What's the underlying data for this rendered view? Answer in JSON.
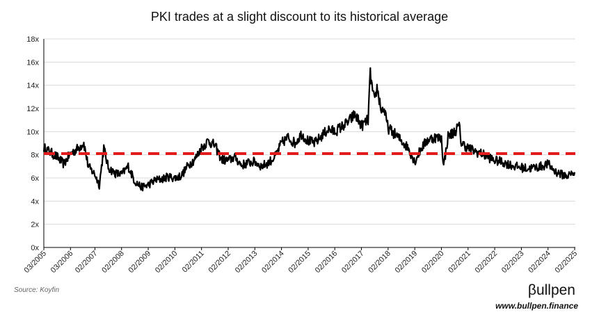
{
  "chart_data": {
    "type": "line",
    "title": "PKI trades at a slight discount to its historical average",
    "xlabel": "",
    "ylabel": "",
    "ylim": [
      0,
      18
    ],
    "y_ticks": [
      "0x",
      "2x",
      "4x",
      "6x",
      "8x",
      "10x",
      "12x",
      "14x",
      "16x",
      "18x"
    ],
    "x_ticks": [
      "03/2005",
      "03/2006",
      "02/2007",
      "02/2008",
      "02/2009",
      "02/2010",
      "02/2011",
      "02/2012",
      "02/2013",
      "02/2014",
      "02/2015",
      "02/2016",
      "02/2017",
      "02/2018",
      "02/2019",
      "02/2020",
      "02/2021",
      "02/2022",
      "02/2023",
      "02/2024",
      "02/2025"
    ],
    "grid": true,
    "legend": "none",
    "series": [
      {
        "kind": "valuation",
        "color": "#000000",
        "points": [
          [
            "03/2005",
            8.6
          ],
          [
            "06/2005",
            8.2
          ],
          [
            "09/2005",
            7.8
          ],
          [
            "12/2005",
            7.2
          ],
          [
            "03/2006",
            8.1
          ],
          [
            "06/2006",
            8.5
          ],
          [
            "09/2006",
            9.0
          ],
          [
            "11/2006",
            7.0
          ],
          [
            "02/2007",
            6.3
          ],
          [
            "04/2007",
            5.4
          ],
          [
            "06/2007",
            8.6
          ],
          [
            "08/2007",
            6.9
          ],
          [
            "11/2007",
            6.4
          ],
          [
            "02/2008",
            6.3
          ],
          [
            "05/2008",
            7.0
          ],
          [
            "08/2008",
            5.7
          ],
          [
            "11/2008",
            5.2
          ],
          [
            "02/2009",
            5.4
          ],
          [
            "05/2009",
            5.8
          ],
          [
            "08/2009",
            5.9
          ],
          [
            "11/2009",
            6.1
          ],
          [
            "02/2010",
            6.0
          ],
          [
            "05/2010",
            6.2
          ],
          [
            "08/2010",
            7.1
          ],
          [
            "11/2010",
            7.6
          ],
          [
            "02/2011",
            8.6
          ],
          [
            "05/2011",
            9.2
          ],
          [
            "08/2011",
            8.8
          ],
          [
            "11/2011",
            7.6
          ],
          [
            "02/2012",
            7.5
          ],
          [
            "05/2012",
            7.8
          ],
          [
            "08/2012",
            7.1
          ],
          [
            "11/2012",
            7.3
          ],
          [
            "02/2013",
            7.4
          ],
          [
            "05/2013",
            7.0
          ],
          [
            "08/2013",
            7.3
          ],
          [
            "11/2013",
            7.8
          ],
          [
            "02/2014",
            9.0
          ],
          [
            "05/2014",
            9.5
          ],
          [
            "08/2014",
            9.0
          ],
          [
            "11/2014",
            9.8
          ],
          [
            "02/2015",
            9.2
          ],
          [
            "05/2015",
            9.0
          ],
          [
            "08/2015",
            9.6
          ],
          [
            "11/2015",
            10.2
          ],
          [
            "02/2016",
            10.0
          ],
          [
            "05/2016",
            10.4
          ],
          [
            "08/2016",
            10.8
          ],
          [
            "11/2016",
            11.5
          ],
          [
            "02/2017",
            10.5
          ],
          [
            "05/2017",
            11.0
          ],
          [
            "06/2017",
            15.0
          ],
          [
            "07/2017",
            13.5
          ],
          [
            "08/2017",
            12.5
          ],
          [
            "09/2017",
            13.8
          ],
          [
            "11/2017",
            11.8
          ],
          [
            "12/2017",
            12.0
          ],
          [
            "02/2018",
            10.3
          ],
          [
            "05/2018",
            9.8
          ],
          [
            "08/2018",
            9.2
          ],
          [
            "11/2018",
            8.6
          ],
          [
            "02/2019",
            7.4
          ],
          [
            "05/2019",
            8.6
          ],
          [
            "08/2019",
            9.3
          ],
          [
            "11/2019",
            9.5
          ],
          [
            "02/2020",
            9.4
          ],
          [
            "03/2020",
            7.0
          ],
          [
            "05/2020",
            9.6
          ],
          [
            "08/2020",
            10.0
          ],
          [
            "10/2020",
            10.5
          ],
          [
            "11/2020",
            9.0
          ],
          [
            "02/2021",
            8.6
          ],
          [
            "05/2021",
            8.3
          ],
          [
            "08/2021",
            8.1
          ],
          [
            "11/2021",
            7.8
          ],
          [
            "02/2022",
            7.5
          ],
          [
            "05/2022",
            7.4
          ],
          [
            "08/2022",
            7.2
          ],
          [
            "11/2022",
            7.0
          ],
          [
            "02/2023",
            6.9
          ],
          [
            "05/2023",
            6.8
          ],
          [
            "08/2023",
            6.9
          ],
          [
            "11/2023",
            7.0
          ],
          [
            "02/2024",
            7.2
          ],
          [
            "05/2024",
            6.6
          ],
          [
            "08/2024",
            6.3
          ],
          [
            "11/2024",
            6.2
          ],
          [
            "02/2025",
            6.5
          ]
        ]
      },
      {
        "kind": "historical-average",
        "color": "#e31b1b",
        "dashed": true,
        "value": 8.1
      }
    ]
  },
  "source_note": "Source: Koyfin",
  "brand": {
    "name": "βullpen",
    "url": "www.bullpen.finance"
  }
}
